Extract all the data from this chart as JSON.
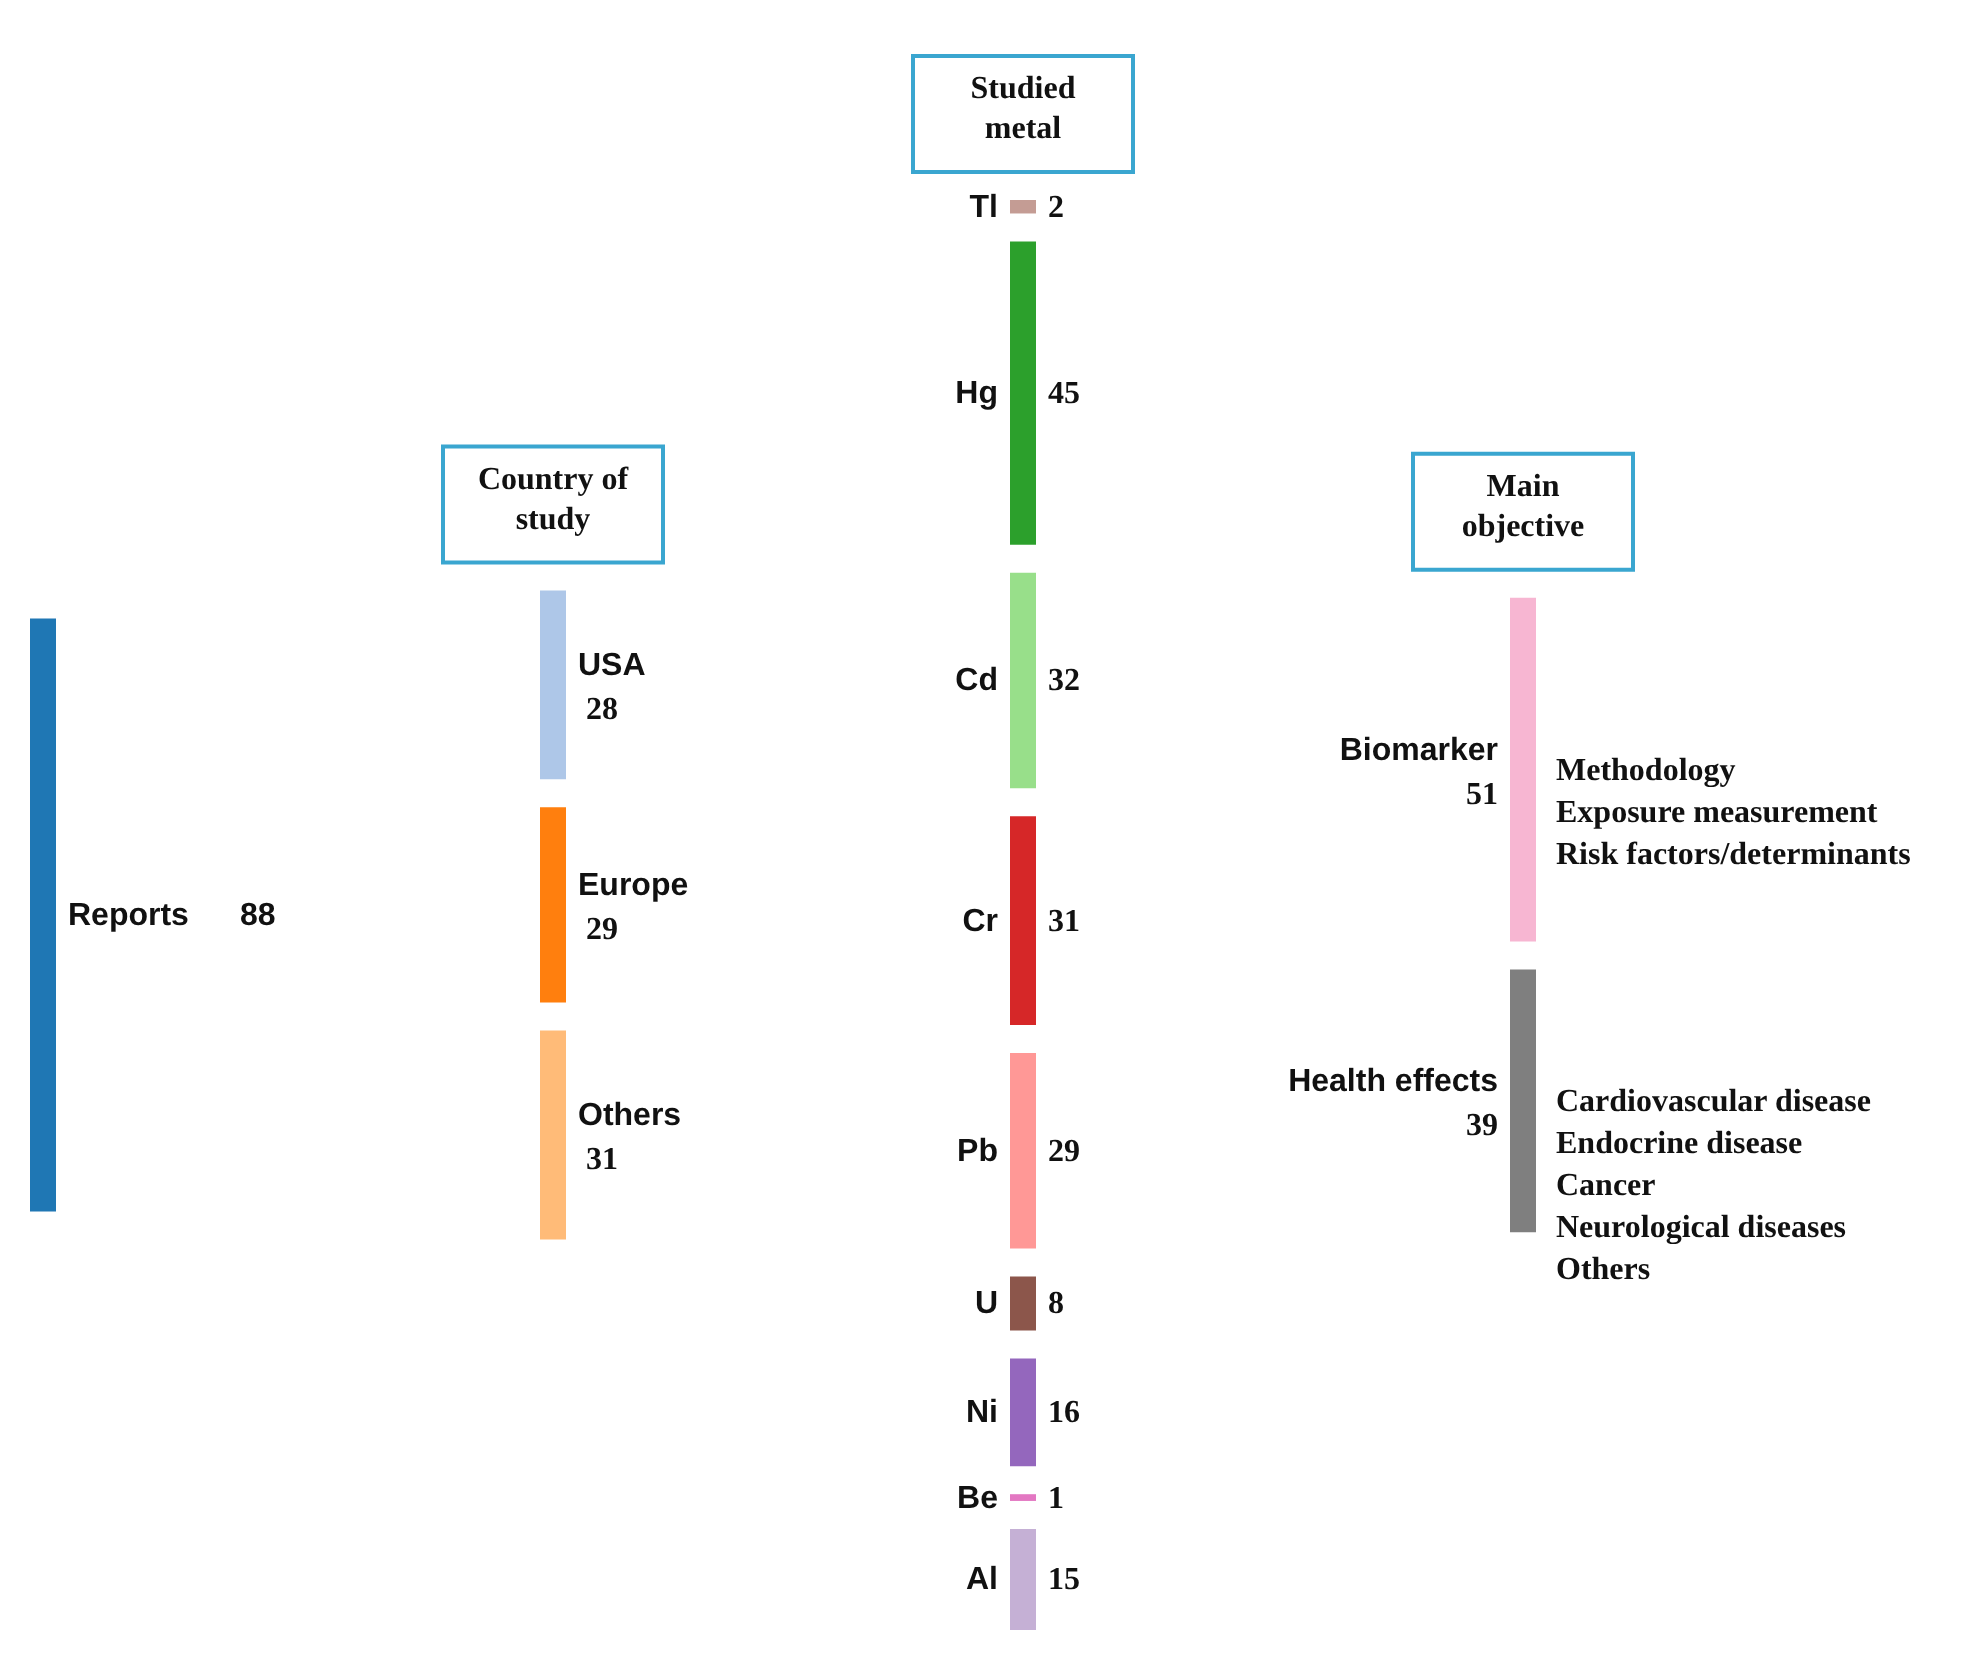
{
  "chart_data": {
    "type": "other",
    "categories": [
      "Reports",
      "USA",
      "Europe",
      "Others",
      "Tl",
      "Hg",
      "Cd",
      "Cr",
      "Pb",
      "U",
      "Ni",
      "Be",
      "Al",
      "Biomarker",
      "Health effects"
    ],
    "series": [
      {
        "values": [
          88,
          null,
          null,
          null,
          null,
          null,
          null,
          null,
          null,
          null,
          null,
          null,
          null,
          null,
          null
        ]
      },
      {
        "name": "Country of study",
        "values": [
          null,
          28,
          29,
          31,
          null,
          null,
          null,
          null,
          null,
          null,
          null,
          null,
          null,
          null,
          null
        ]
      },
      {
        "name": "Studied metal",
        "values": [
          null,
          null,
          null,
          null,
          2,
          45,
          32,
          31,
          29,
          8,
          16,
          1,
          15,
          null,
          null
        ]
      },
      {
        "name": "Main objective",
        "values": [
          null,
          null,
          null,
          null,
          null,
          null,
          null,
          null,
          null,
          null,
          null,
          null,
          null,
          51,
          39
        ]
      }
    ],
    "colors": [
      "#1f77b4",
      "#aec7e8",
      "#ff7f0e",
      "#ffbb78",
      "#c49c94",
      "#2ca02c",
      "#98df8a",
      "#d62728",
      "#ff9896",
      "#8c564b",
      "#9467bd",
      "#e377c2",
      "#c5b0d5",
      "#f7b6d2",
      "#7f7f7f"
    ],
    "data_labels": true,
    "annotations": [
      "Methodology\nExposure measurement\nRisk factors/determinants",
      "Cardiovascular disease\nEndocrine disease\nCancer\nNeurological diseases\nOthers"
    ]
  }
}
